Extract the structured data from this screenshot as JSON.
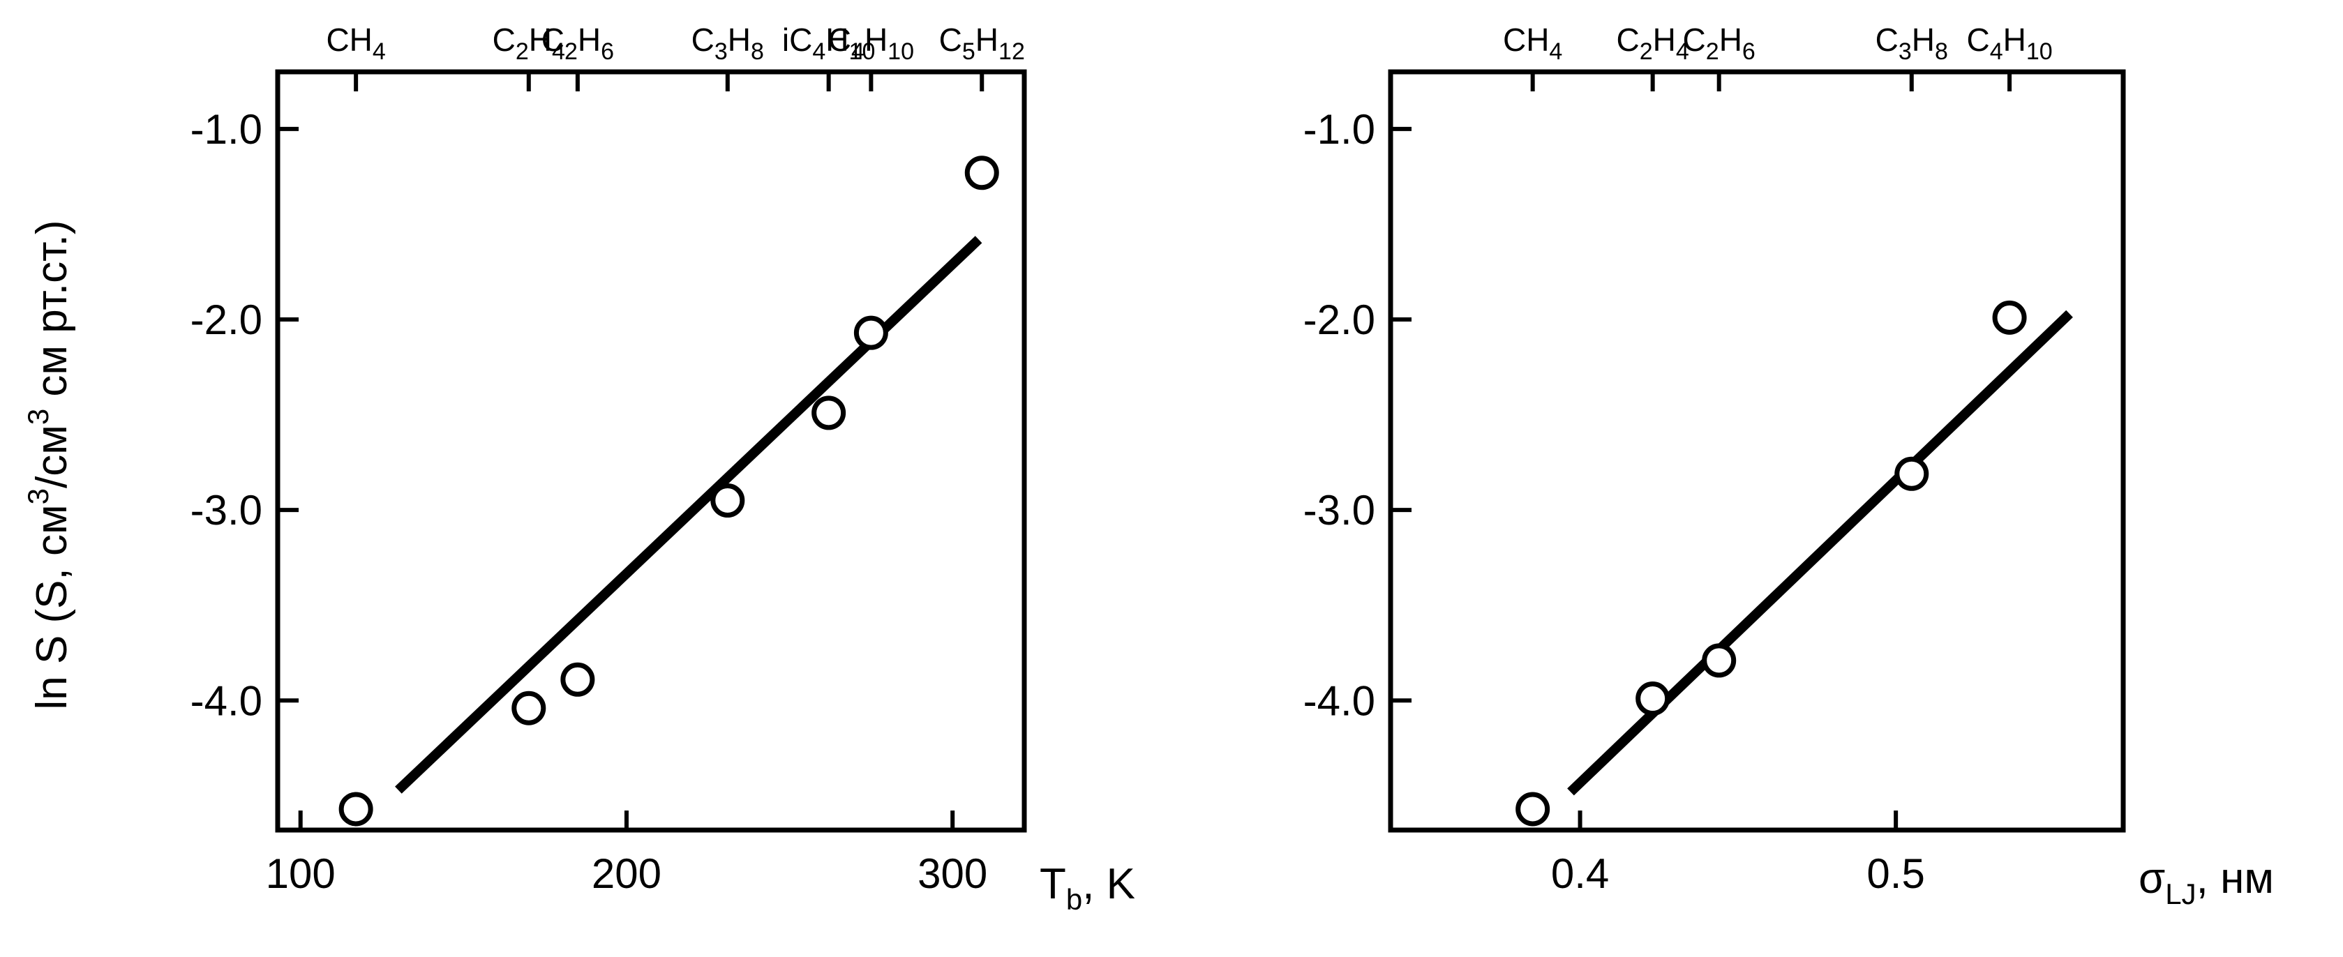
{
  "chart_data": [
    {
      "type": "scatter",
      "title": "",
      "xlabel": "T_b, K",
      "xlabel_parts": {
        "main": "T",
        "sub": "b",
        "rest": ", K"
      },
      "ylabel": "ln S (S, см³/см³ см рт.ст.)",
      "ylabel_parts": {
        "a": "ln S (S, см",
        "sup1": "3",
        "b": "/см",
        "sup2": "3",
        "c": " см рт.ст.)"
      },
      "xlim": [
        93,
        322
      ],
      "ylim": [
        -4.68,
        -0.7
      ],
      "x_ticks": [
        100,
        200,
        300
      ],
      "y_ticks": [
        -1.0,
        -2.0,
        -3.0,
        -4.0
      ],
      "y_tick_labels": [
        "-1.0",
        "-2.0",
        "-3.0",
        "-4.0"
      ],
      "series": [
        {
          "points": [
            {
              "x": 117,
              "y": -4.57
            },
            {
              "x": 170,
              "y": -4.04
            },
            {
              "x": 185,
              "y": -3.89
            },
            {
              "x": 231,
              "y": -2.95
            },
            {
              "x": 262,
              "y": -2.49
            },
            {
              "x": 275,
              "y": -2.07
            },
            {
              "x": 309,
              "y": -1.23
            }
          ]
        }
      ],
      "fit_line": {
        "x1": 130,
        "y1": -4.47,
        "x2": 308,
        "y2": -1.58
      },
      "top_axis": [
        {
          "x": 117,
          "base": "CH",
          "parts": [
            {
              "t": "CH"
            },
            {
              "t": "4",
              "sub": true
            }
          ]
        },
        {
          "x": 170,
          "parts": [
            {
              "t": "C"
            },
            {
              "t": "2",
              "sub": true
            },
            {
              "t": "H"
            },
            {
              "t": "4",
              "sub": true
            }
          ]
        },
        {
          "x": 185,
          "parts": [
            {
              "t": "C"
            },
            {
              "t": "2",
              "sub": true
            },
            {
              "t": "H"
            },
            {
              "t": "6",
              "sub": true
            }
          ]
        },
        {
          "x": 231,
          "parts": [
            {
              "t": "C"
            },
            {
              "t": "3",
              "sub": true
            },
            {
              "t": "H"
            },
            {
              "t": "8",
              "sub": true
            }
          ]
        },
        {
          "x": 262,
          "parts": [
            {
              "t": "iC"
            },
            {
              "t": "4",
              "sub": true
            },
            {
              "t": "H"
            },
            {
              "t": "10",
              "sub": true
            }
          ]
        },
        {
          "x": 275,
          "parts": [
            {
              "t": "C"
            },
            {
              "t": "4",
              "sub": true
            },
            {
              "t": "H"
            },
            {
              "t": "10",
              "sub": true
            }
          ]
        },
        {
          "x": 309,
          "parts": [
            {
              "t": "C"
            },
            {
              "t": "5",
              "sub": true
            },
            {
              "t": "H"
            },
            {
              "t": "12",
              "sub": true
            }
          ]
        }
      ]
    },
    {
      "type": "scatter",
      "title": "",
      "xlabel": "σ_LJ, нм",
      "xlabel_parts": {
        "main": "σ",
        "sub": "LJ",
        "rest": ", нм"
      },
      "ylabel": "",
      "xlim": [
        0.34,
        0.572
      ],
      "ylim": [
        -4.68,
        -0.7
      ],
      "x_ticks": [
        0.4,
        0.5
      ],
      "x_tick_labels": [
        "0.4",
        "0.5"
      ],
      "y_ticks": [
        -1.0,
        -2.0,
        -3.0,
        -4.0
      ],
      "y_tick_labels": [
        "-1.0",
        "-2.0",
        "-3.0",
        "-4.0"
      ],
      "series": [
        {
          "points": [
            {
              "x": 0.385,
              "y": -4.57
            },
            {
              "x": 0.423,
              "y": -3.99
            },
            {
              "x": 0.444,
              "y": -3.79
            },
            {
              "x": 0.505,
              "y": -2.81
            },
            {
              "x": 0.536,
              "y": -1.99
            }
          ]
        }
      ],
      "fit_line": {
        "x1": 0.397,
        "y1": -4.48,
        "x2": 0.555,
        "y2": -1.97
      },
      "top_axis": [
        {
          "x": 0.385,
          "parts": [
            {
              "t": "CH"
            },
            {
              "t": "4",
              "sub": true
            }
          ]
        },
        {
          "x": 0.423,
          "parts": [
            {
              "t": "C"
            },
            {
              "t": "2",
              "sub": true
            },
            {
              "t": "H"
            },
            {
              "t": "4",
              "sub": true
            }
          ]
        },
        {
          "x": 0.444,
          "parts": [
            {
              "t": "C"
            },
            {
              "t": "2",
              "sub": true
            },
            {
              "t": "H"
            },
            {
              "t": "6",
              "sub": true
            }
          ]
        },
        {
          "x": 0.505,
          "parts": [
            {
              "t": "C"
            },
            {
              "t": "3",
              "sub": true
            },
            {
              "t": "H"
            },
            {
              "t": "8",
              "sub": true
            }
          ]
        },
        {
          "x": 0.536,
          "parts": [
            {
              "t": "C"
            },
            {
              "t": "4",
              "sub": true
            },
            {
              "t": "H"
            },
            {
              "t": "10",
              "sub": true
            }
          ]
        }
      ]
    }
  ]
}
